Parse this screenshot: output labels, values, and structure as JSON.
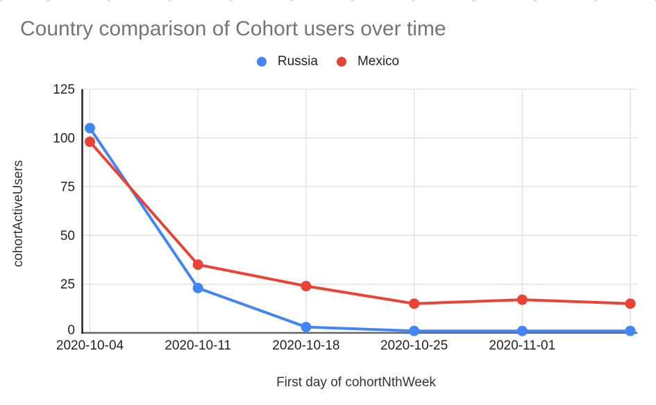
{
  "chart_data": {
    "type": "line",
    "categories": [
      "2020-10-04",
      "2020-10-11",
      "2020-10-18",
      "2020-10-25",
      "2020-11-01",
      ""
    ],
    "series": [
      {
        "name": "Russia",
        "color": "#4285F4",
        "values": [
          105,
          23,
          3,
          1,
          1,
          1
        ]
      },
      {
        "name": "Mexico",
        "color": "#EA4335",
        "values": [
          98,
          35,
          24,
          15,
          17,
          15
        ]
      }
    ],
    "title": "Country comparison of Cohort users over time",
    "xlabel": "First day of cohortNthWeek",
    "ylabel": "cohortActiveUsers",
    "ylim": [
      0,
      125
    ],
    "yticks": [
      0,
      25,
      50,
      75,
      100,
      125
    ],
    "grid": true,
    "legend_position": "top",
    "point_style": "filled-circle",
    "colors": {
      "title_text": "#757575",
      "tick_text": "#222222",
      "axis_title_text": "#333333",
      "gridline": "#e3e3e3",
      "y_axis_line": "#212121",
      "x_baseline": "#666666",
      "background": "#ffffff"
    }
  }
}
